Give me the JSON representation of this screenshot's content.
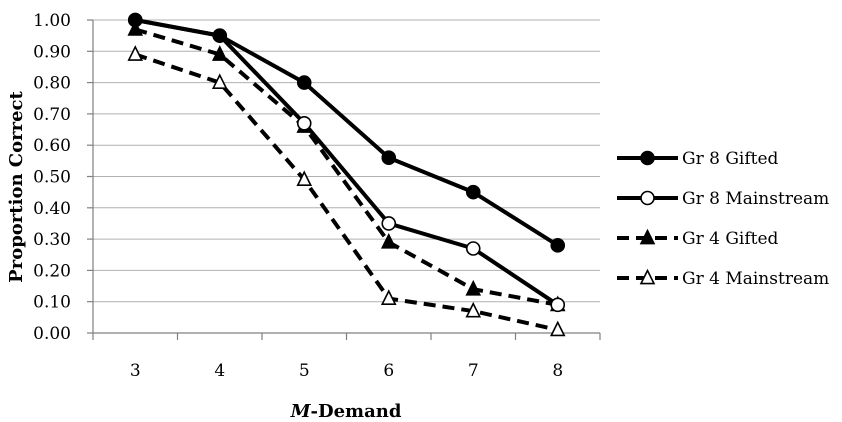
{
  "chart_data": {
    "type": "line",
    "xlabel_prefix": "M",
    "xlabel_suffix": "-Demand",
    "ylabel": "Proportion Correct",
    "categories": [
      "3",
      "4",
      "5",
      "6",
      "7",
      "8"
    ],
    "ylim": [
      0,
      1
    ],
    "yticks": [
      "0.00",
      "0.10",
      "0.20",
      "0.30",
      "0.40",
      "0.50",
      "0.60",
      "0.70",
      "0.80",
      "0.90",
      "1.00"
    ],
    "grid": "horizontal",
    "legend_position": "right",
    "series": [
      {
        "name": "Gr 8 Gifted",
        "marker": "filled-circle",
        "dash": "solid",
        "values": [
          1.0,
          0.95,
          0.8,
          0.56,
          0.45,
          0.28
        ]
      },
      {
        "name": "Gr 8 Mainstream",
        "marker": "open-circle",
        "dash": "solid",
        "values": [
          1.0,
          0.95,
          0.67,
          0.35,
          0.27,
          0.09
        ]
      },
      {
        "name": "Gr 4 Gifted",
        "marker": "filled-triangle",
        "dash": "dashed",
        "values": [
          0.97,
          0.89,
          0.66,
          0.29,
          0.14,
          0.09
        ]
      },
      {
        "name": "Gr 4 Mainstream",
        "marker": "open-triangle",
        "dash": "dashed",
        "values": [
          0.89,
          0.8,
          0.49,
          0.11,
          0.07,
          0.01
        ]
      }
    ]
  }
}
